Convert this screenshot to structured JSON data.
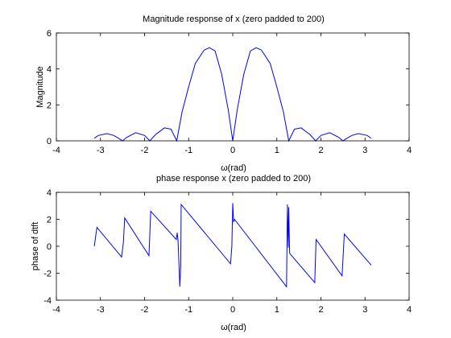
{
  "chart_data": [
    {
      "type": "line",
      "title": "Magnitude response of  x (zero padded to 200)",
      "xlabel": "ω(rad)",
      "ylabel": "Magnitude",
      "xlim": [
        -4,
        4
      ],
      "ylim": [
        0,
        6
      ],
      "xticks": [
        -4,
        -3,
        -2,
        -1,
        0,
        1,
        2,
        3,
        4
      ],
      "yticks": [
        0,
        2,
        4,
        6
      ],
      "grid": false,
      "series": [
        {
          "color": "#0000ff",
          "points": [
            [
              -3.14,
              0.14
            ],
            [
              -3.05,
              0.3
            ],
            [
              -2.85,
              0.4
            ],
            [
              -2.7,
              0.3
            ],
            [
              -2.55,
              0.08
            ],
            [
              -2.5,
              0.0
            ],
            [
              -2.4,
              0.2
            ],
            [
              -2.2,
              0.45
            ],
            [
              -2.0,
              0.3
            ],
            [
              -1.88,
              0.0
            ],
            [
              -1.75,
              0.35
            ],
            [
              -1.55,
              0.72
            ],
            [
              -1.4,
              0.65
            ],
            [
              -1.27,
              0.0
            ],
            [
              -1.15,
              1.6
            ],
            [
              -1.0,
              3.0
            ],
            [
              -0.85,
              4.3
            ],
            [
              -0.65,
              5.05
            ],
            [
              -0.53,
              5.18
            ],
            [
              -0.4,
              5.0
            ],
            [
              -0.25,
              3.7
            ],
            [
              -0.1,
              1.7
            ],
            [
              0.0,
              0.0
            ],
            [
              0.1,
              1.7
            ],
            [
              0.25,
              3.7
            ],
            [
              0.4,
              5.0
            ],
            [
              0.53,
              5.18
            ],
            [
              0.65,
              5.05
            ],
            [
              0.85,
              4.3
            ],
            [
              1.0,
              3.0
            ],
            [
              1.15,
              1.6
            ],
            [
              1.27,
              0.0
            ],
            [
              1.4,
              0.65
            ],
            [
              1.55,
              0.72
            ],
            [
              1.75,
              0.35
            ],
            [
              1.88,
              0.0
            ],
            [
              2.0,
              0.3
            ],
            [
              2.2,
              0.45
            ],
            [
              2.4,
              0.2
            ],
            [
              2.5,
              0.0
            ],
            [
              2.55,
              0.08
            ],
            [
              2.7,
              0.3
            ],
            [
              2.85,
              0.4
            ],
            [
              3.05,
              0.3
            ],
            [
              3.14,
              0.14
            ]
          ]
        }
      ]
    },
    {
      "type": "line",
      "title": "phase response x (zero padded to 200)",
      "xlabel": "ω(rad)",
      "ylabel": "phase of dtft",
      "xlim": [
        -4,
        4
      ],
      "ylim": [
        -4,
        4
      ],
      "xticks": [
        -4,
        -3,
        -2,
        -1,
        0,
        1,
        2,
        3,
        4
      ],
      "yticks": [
        -4,
        -2,
        0,
        2,
        4
      ],
      "grid": false,
      "series": [
        {
          "color": "#0000ff",
          "points": [
            [
              -3.14,
              0.0
            ],
            [
              -3.08,
              1.4
            ],
            [
              -2.52,
              -0.8
            ],
            [
              -2.48,
              0.3
            ],
            [
              -2.45,
              2.1
            ],
            [
              -1.9,
              -0.7
            ],
            [
              -1.86,
              2.6
            ],
            [
              -1.28,
              0.5
            ],
            [
              -1.26,
              1.0
            ],
            [
              -1.24,
              0.4
            ],
            [
              -1.2,
              -3.0
            ],
            [
              -1.18,
              -1.5
            ],
            [
              -1.17,
              3.1
            ],
            [
              -0.05,
              -1.3
            ],
            [
              -0.02,
              0.0
            ],
            [
              0.0,
              3.2
            ],
            [
              0.02,
              1.8
            ],
            [
              0.04,
              2.0
            ],
            [
              1.22,
              -3.0
            ],
            [
              1.24,
              3.1
            ],
            [
              1.26,
              -0.1
            ],
            [
              1.27,
              2.9
            ],
            [
              1.29,
              -0.5
            ],
            [
              1.31,
              -0.6
            ],
            [
              1.86,
              -2.7
            ],
            [
              1.89,
              0.5
            ],
            [
              2.48,
              -2.2
            ],
            [
              2.53,
              0.9
            ],
            [
              3.14,
              -1.4
            ]
          ]
        }
      ]
    }
  ]
}
